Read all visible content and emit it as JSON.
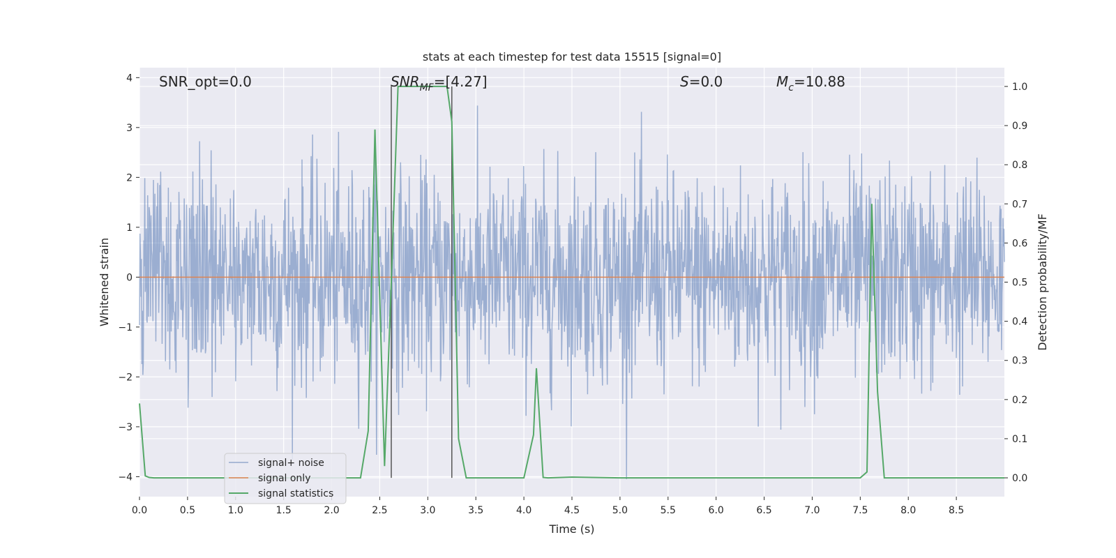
{
  "chart_data": {
    "type": "line",
    "title": "stats at each timestep for test data 15515 [signal=0]",
    "xlabel": "Time (s)",
    "ylabel": "Whitened strain",
    "ylabel_right": "Detection probability/MF",
    "xlim": [
      0.0,
      9.0
    ],
    "ylim": [
      -4.4,
      4.2
    ],
    "ylim_right": [
      -0.048,
      1.048
    ],
    "x_ticks": [
      "0.0",
      "0.5",
      "1.0",
      "1.5",
      "2.0",
      "2.5",
      "3.0",
      "3.5",
      "4.0",
      "4.5",
      "5.0",
      "5.5",
      "6.0",
      "6.5",
      "7.0",
      "7.5",
      "8.0",
      "8.5"
    ],
    "y_ticks": [
      "4",
      "3",
      "2",
      "1",
      "0",
      "−1",
      "−2",
      "−3",
      "−4"
    ],
    "y_ticks_right": [
      "1.0",
      "0.9",
      "0.8",
      "0.7",
      "0.6",
      "0.5",
      "0.4",
      "0.3",
      "0.2",
      "0.1",
      "0.0"
    ],
    "grid": true,
    "legend_position": "lower-left",
    "annotations": {
      "snr_opt": "SNR_opt=0.0",
      "snr_mf_base": "SNR",
      "snr_mf_sub": "MF",
      "snr_mf_rest": "=[4.27]",
      "s_sym": "S",
      "s_rest": "=0.0",
      "mc_base": "M",
      "mc_sub": "c",
      "mc_rest": "=10.88"
    },
    "vertical_lines_x": [
      2.62,
      3.25
    ],
    "series": [
      {
        "name": "signal+ noise",
        "color": "#4c72b0",
        "axis": "left",
        "description": "whitened strain noise, roughly Gaussian, range about -4 to 4",
        "noise_sigma": 1.0,
        "n_samples": 1800
      },
      {
        "name": "signal only",
        "color": "#dd8452",
        "axis": "left",
        "x": [
          0.0,
          9.0
        ],
        "y": [
          0.0,
          0.0
        ]
      },
      {
        "name": "signal statistics",
        "color": "#55a868",
        "axis": "right",
        "x": [
          0.0,
          0.06,
          0.1,
          0.15,
          0.25,
          0.5,
          1.0,
          1.5,
          2.0,
          2.3,
          2.38,
          2.45,
          2.55,
          2.62,
          2.69,
          2.75,
          3.0,
          3.2,
          3.25,
          3.32,
          3.4,
          3.6,
          4.0,
          4.1,
          4.13,
          4.2,
          4.25,
          4.5,
          5.0,
          6.0,
          7.0,
          7.5,
          7.57,
          7.62,
          7.68,
          7.75,
          8.0,
          9.0
        ],
        "y": [
          0.19,
          0.005,
          0.001,
          0.0,
          0.0,
          0.0,
          0.0,
          0.0,
          0.0,
          0.0,
          0.12,
          0.89,
          0.03,
          0.5,
          1.0,
          1.0,
          1.0,
          1.0,
          0.91,
          0.1,
          0.0,
          0.0,
          0.0,
          0.11,
          0.28,
          0.001,
          0.0,
          0.002,
          0.0,
          0.0,
          0.0,
          0.0,
          0.015,
          0.7,
          0.22,
          0.0,
          0.0,
          0.0
        ]
      }
    ]
  }
}
